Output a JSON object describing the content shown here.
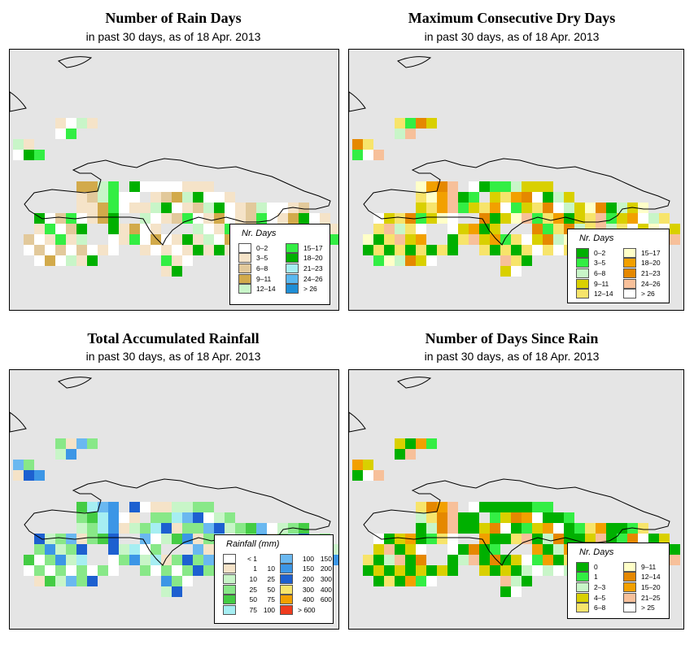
{
  "subtitle": "in past 30 days, as of  18 Apr. 2013",
  "panels": {
    "rain_days": {
      "title": "Number of Rain Days",
      "legend_title": "Nr. Days",
      "legend": [
        {
          "label": "0–2",
          "color": "#ffffff"
        },
        {
          "label": "3–5",
          "color": "#f5e3c8"
        },
        {
          "label": "6–8",
          "color": "#e2c99b"
        },
        {
          "label": "9–11",
          "color": "#d2aa4b"
        },
        {
          "label": "12–14",
          "color": "#c8f5c8"
        },
        {
          "label": "15–17",
          "color": "#33ee44"
        },
        {
          "label": "18–20",
          "color": "#00b000"
        },
        {
          "label": "21–23",
          "color": "#a6eef2"
        },
        {
          "label": "24–26",
          "color": "#5ab8f0"
        },
        {
          "label": "> 26",
          "color": "#1f8ed6"
        }
      ]
    },
    "dry_days": {
      "title": "Maximum Consecutive Dry Days",
      "legend_title": "Nr. Days",
      "legend": [
        {
          "label": "0–2",
          "color": "#00b000"
        },
        {
          "label": "3–5",
          "color": "#33ee44"
        },
        {
          "label": "6–8",
          "color": "#c8f5c8"
        },
        {
          "label": "9–11",
          "color": "#d9d000"
        },
        {
          "label": "12–14",
          "color": "#f7e46b"
        },
        {
          "label": "15–17",
          "color": "#ffffc8"
        },
        {
          "label": "18–20",
          "color": "#f2a000"
        },
        {
          "label": "21–23",
          "color": "#e58800"
        },
        {
          "label": "24–26",
          "color": "#f7c09a"
        },
        {
          "label": "> 26",
          "color": "#ffffff"
        }
      ]
    },
    "rainfall": {
      "title": "Total Accumulated Rainfall",
      "legend_title": "Rainfall (mm)",
      "legend": [
        {
          "lo": "< 1",
          "hi": "",
          "color": "#ffffff"
        },
        {
          "lo": "1",
          "hi": "10",
          "color": "#f5e3c8"
        },
        {
          "lo": "10",
          "hi": "25",
          "color": "#c8f5c8"
        },
        {
          "lo": "25",
          "hi": "50",
          "color": "#88e888"
        },
        {
          "lo": "50",
          "hi": "75",
          "color": "#44cc44"
        },
        {
          "lo": "75",
          "hi": "100",
          "color": "#a6eef2"
        },
        {
          "lo": "100",
          "hi": "150",
          "color": "#6ab8f0"
        },
        {
          "lo": "150",
          "hi": "200",
          "color": "#3c96e6"
        },
        {
          "lo": "200",
          "hi": "300",
          "color": "#1d60d0"
        },
        {
          "lo": "300",
          "hi": "400",
          "color": "#f7e46b"
        },
        {
          "lo": "400",
          "hi": "600",
          "color": "#f2a000"
        },
        {
          "lo": "> 600",
          "hi": "",
          "color": "#f03c1e"
        }
      ]
    },
    "since_rain": {
      "title": "Number of Days Since Rain",
      "legend_title": "Nr. Days",
      "legend": [
        {
          "label": "0",
          "color": "#00b000"
        },
        {
          "label": "1",
          "color": "#33ee44"
        },
        {
          "label": "2–3",
          "color": "#c8f5c8"
        },
        {
          "label": "4–5",
          "color": "#d9d000"
        },
        {
          "label": "6–8",
          "color": "#f7e46b"
        },
        {
          "label": "9–11",
          "color": "#ffffc8"
        },
        {
          "label": "12–14",
          "color": "#e58800"
        },
        {
          "label": "15–20",
          "color": "#f2a000"
        },
        {
          "label": "21–25",
          "color": "#f7c09a"
        },
        {
          "label": "> 25",
          "color": "#ffffff"
        }
      ]
    }
  }
}
